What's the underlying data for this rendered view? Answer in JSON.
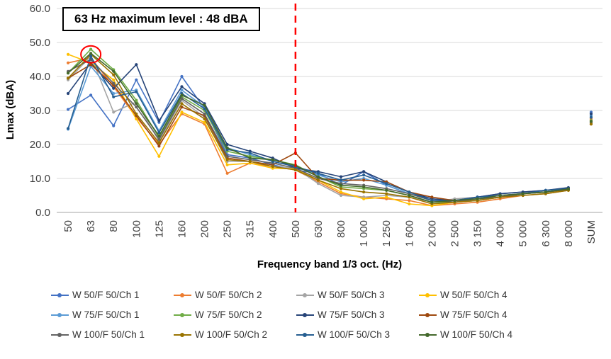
{
  "annotation": {
    "text": "63 Hz maximum level : 48 dBA"
  },
  "chart_data": {
    "type": "line",
    "title": "",
    "xlabel": "Frequency band 1/3 oct. (Hz)",
    "ylabel": "Lmax (dBA)",
    "ylim": [
      0,
      60
    ],
    "grid": true,
    "legend_position": "bottom",
    "y_ticks": [
      "0.0",
      "10.0",
      "20.0",
      "30.0",
      "40.0",
      "50.0",
      "60.0"
    ],
    "categories": [
      "50",
      "63",
      "80",
      "100",
      "125",
      "160",
      "200",
      "250",
      "315",
      "400",
      "500",
      "630",
      "800",
      "1 000",
      "1 250",
      "1 600",
      "2 000",
      "2 500",
      "3 150",
      "4 000",
      "5 000",
      "6 300",
      "8 000",
      "SUM"
    ],
    "cutoff_category": "500",
    "cutoff_line_color": "#FF0000",
    "highlight": {
      "category": "63",
      "value": 48,
      "circle_color": "#FF0000"
    },
    "note": "SUM column plotted as isolated markers, not connected to the 8000 Hz points",
    "series": [
      {
        "name": "W 50/F 50/Ch 1",
        "color": "#4472C4",
        "values": [
          30.3,
          34.5,
          25.5,
          39.0,
          26.5,
          40.0,
          30.5,
          17.0,
          16.0,
          14.0,
          12.5,
          11.5,
          8.0,
          12.0,
          8.0,
          5.5,
          3.5,
          3.0,
          4.5,
          5.5,
          6.0,
          6.5,
          7.2,
          29.5
        ]
      },
      {
        "name": "W 50/F 50/Ch 2",
        "color": "#ED7D31",
        "values": [
          44.0,
          45.5,
          37.0,
          28.0,
          20.0,
          29.0,
          26.0,
          11.5,
          14.5,
          13.5,
          12.5,
          9.0,
          5.5,
          4.5,
          4.0,
          3.5,
          2.0,
          2.5,
          3.0,
          4.0,
          5.0,
          5.5,
          6.5,
          27.5
        ]
      },
      {
        "name": "W 50/F 50/Ch 3",
        "color": "#A5A5A5",
        "values": [
          39.0,
          46.0,
          29.5,
          32.5,
          21.0,
          33.0,
          28.0,
          15.0,
          15.0,
          13.5,
          13.0,
          8.5,
          5.0,
          4.5,
          5.0,
          4.5,
          3.0,
          4.0,
          4.5,
          5.0,
          5.5,
          6.0,
          6.8,
          26.5
        ]
      },
      {
        "name": "W 50/F 50/Ch 4",
        "color": "#FFC000",
        "values": [
          46.5,
          44.0,
          39.0,
          27.5,
          16.5,
          29.5,
          26.5,
          14.0,
          14.5,
          13.0,
          12.8,
          9.5,
          6.0,
          4.0,
          4.5,
          2.5,
          2.0,
          3.0,
          3.5,
          4.5,
          5.5,
          6.0,
          6.5,
          27.0
        ]
      },
      {
        "name": "W 75/F 50/Ch 1",
        "color": "#5B9BD5",
        "values": [
          24.5,
          43.0,
          35.0,
          36.0,
          24.0,
          36.0,
          31.0,
          19.0,
          17.0,
          15.0,
          13.5,
          11.0,
          9.0,
          10.0,
          8.0,
          5.5,
          3.5,
          3.5,
          4.0,
          5.0,
          5.5,
          6.0,
          7.0,
          28.5
        ]
      },
      {
        "name": "W 75/F 50/Ch 2",
        "color": "#70AD47",
        "values": [
          41.0,
          48.0,
          42.0,
          33.0,
          22.0,
          34.0,
          30.0,
          18.0,
          16.5,
          15.5,
          14.0,
          10.5,
          7.5,
          7.0,
          6.5,
          5.0,
          3.0,
          3.0,
          3.5,
          4.5,
          5.5,
          6.0,
          6.8,
          27.0
        ]
      },
      {
        "name": "W 75/F 50/Ch 3",
        "color": "#264478",
        "values": [
          35.0,
          44.0,
          36.5,
          43.5,
          27.0,
          37.0,
          32.0,
          20.0,
          18.0,
          16.0,
          13.0,
          12.0,
          10.5,
          12.0,
          9.0,
          6.0,
          4.0,
          3.5,
          4.5,
          5.5,
          6.0,
          6.5,
          7.3,
          29.0
        ]
      },
      {
        "name": "W 75/F 50/Ch 4",
        "color": "#9E480E",
        "values": [
          39.5,
          43.5,
          37.5,
          28.5,
          19.5,
          31.0,
          28.5,
          16.0,
          15.0,
          14.0,
          17.5,
          10.0,
          9.5,
          9.5,
          9.0,
          6.0,
          4.5,
          3.5,
          4.0,
          4.5,
          5.5,
          6.0,
          6.7,
          26.0
        ]
      },
      {
        "name": "W 100/F 50/Ch 1",
        "color": "#636363",
        "values": [
          41.5,
          45.0,
          38.0,
          31.0,
          21.5,
          33.5,
          29.0,
          16.5,
          15.5,
          14.5,
          13.0,
          10.0,
          8.5,
          8.0,
          7.0,
          5.5,
          3.5,
          3.0,
          4.0,
          4.5,
          5.5,
          6.0,
          6.8,
          26.5
        ]
      },
      {
        "name": "W 100/F 50/Ch 2",
        "color": "#997300",
        "values": [
          39.5,
          46.5,
          40.5,
          29.0,
          20.5,
          32.0,
          27.5,
          15.5,
          15.0,
          13.5,
          12.5,
          9.5,
          7.0,
          6.0,
          5.5,
          4.5,
          2.5,
          3.0,
          3.5,
          4.5,
          5.0,
          5.5,
          6.5,
          26.0
        ]
      },
      {
        "name": "W 100/F 50/Ch 3",
        "color": "#255E91",
        "values": [
          24.7,
          46.0,
          34.0,
          35.5,
          23.5,
          35.0,
          30.5,
          18.5,
          17.5,
          15.0,
          13.5,
          11.5,
          9.5,
          11.0,
          8.5,
          6.0,
          3.5,
          3.5,
          4.5,
          5.0,
          5.5,
          6.5,
          7.0,
          28.0
        ]
      },
      {
        "name": "W 100/F 50/Ch 4",
        "color": "#43682B",
        "values": [
          41.0,
          46.8,
          41.5,
          32.0,
          22.5,
          34.5,
          31.5,
          19.0,
          16.0,
          15.5,
          13.8,
          10.5,
          8.0,
          7.5,
          6.5,
          5.0,
          3.0,
          3.5,
          4.0,
          5.0,
          5.5,
          6.0,
          6.9,
          26.8
        ]
      }
    ]
  }
}
